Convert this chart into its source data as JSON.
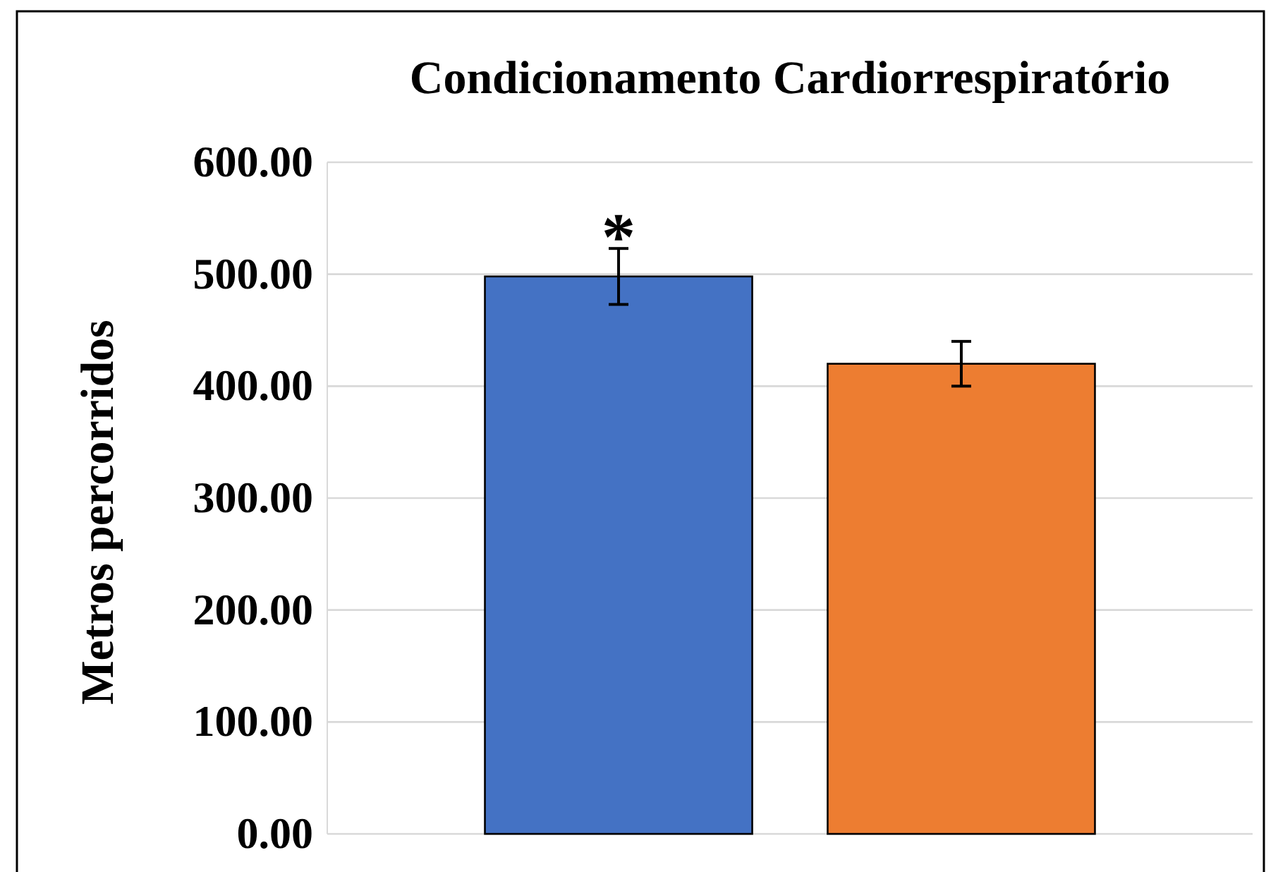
{
  "chart_data": {
    "type": "bar",
    "title": "Condicionamento Cardiorrespiratório",
    "ylabel": "Metros percorridos",
    "categories": [
      null,
      null
    ],
    "values": [
      498,
      420
    ],
    "colors": [
      "#4472c4",
      "#ed7d31"
    ],
    "errors": [
      25,
      20
    ],
    "ylim": [
      0,
      600
    ],
    "yticks": [
      {
        "value": 0,
        "label": "0.00"
      },
      {
        "value": 100,
        "label": "100.00"
      },
      {
        "value": 200,
        "label": "200.00"
      },
      {
        "value": 300,
        "label": "300.00"
      },
      {
        "value": 400,
        "label": "400.00"
      },
      {
        "value": 500,
        "label": "500.00"
      },
      {
        "value": 600,
        "label": "600.00"
      }
    ],
    "grid": "y",
    "annotations": [
      "*"
    ]
  }
}
